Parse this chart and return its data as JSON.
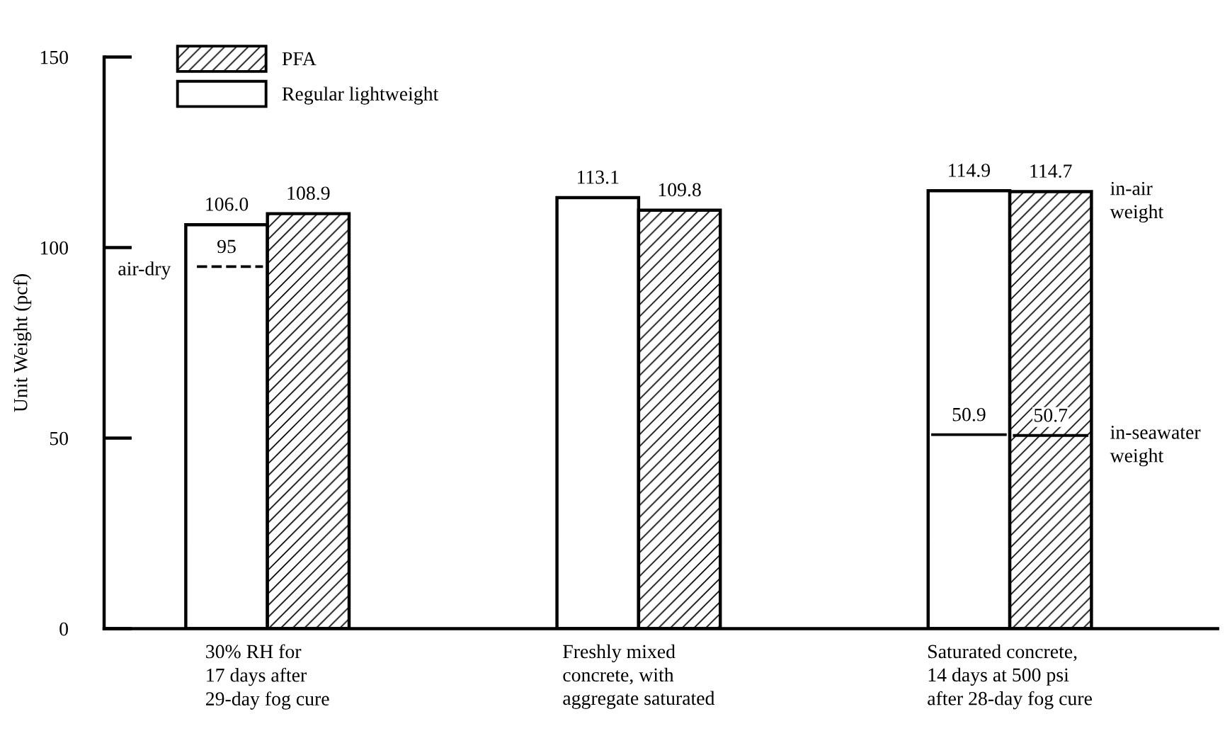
{
  "chart_data": {
    "type": "bar",
    "categories": [
      "30% RH for\n17 days after\n29-day fog cure",
      "Freshly mixed\nconcrete, with\naggregate saturated",
      "Saturated concrete,\n14 days at 500 psi\nafter 28-day fog cure"
    ],
    "ylabel": "Unit Weight (pcf)",
    "series": [
      {
        "name": "Regular lightweight",
        "color": "#ffffff",
        "values": [
          106.0,
          113.1,
          114.9
        ],
        "value_labels": [
          "106.0",
          "113.1",
          "114.9"
        ]
      },
      {
        "name": "PFA",
        "color": "#000000",
        "values": [
          108.9,
          109.8,
          114.7
        ],
        "value_labels": [
          "108.9",
          "109.8",
          "114.7"
        ]
      }
    ],
    "annotations": [
      "air-dry",
      "in-air\nweight",
      "in-seawater\nweight"
    ],
    "ref_lines": [
      {
        "axis": "y",
        "value": 95,
        "label": "95",
        "line_style": "dashed"
      },
      {
        "axis": "y",
        "value": 50.9,
        "label": "50.9"
      },
      {
        "axis": "y",
        "value": 50.7,
        "label": "50.7"
      }
    ],
    "ylim": [
      0,
      150
    ],
    "yticks": [
      0,
      50,
      100,
      150
    ],
    "grid": false,
    "legend": "top left"
  }
}
